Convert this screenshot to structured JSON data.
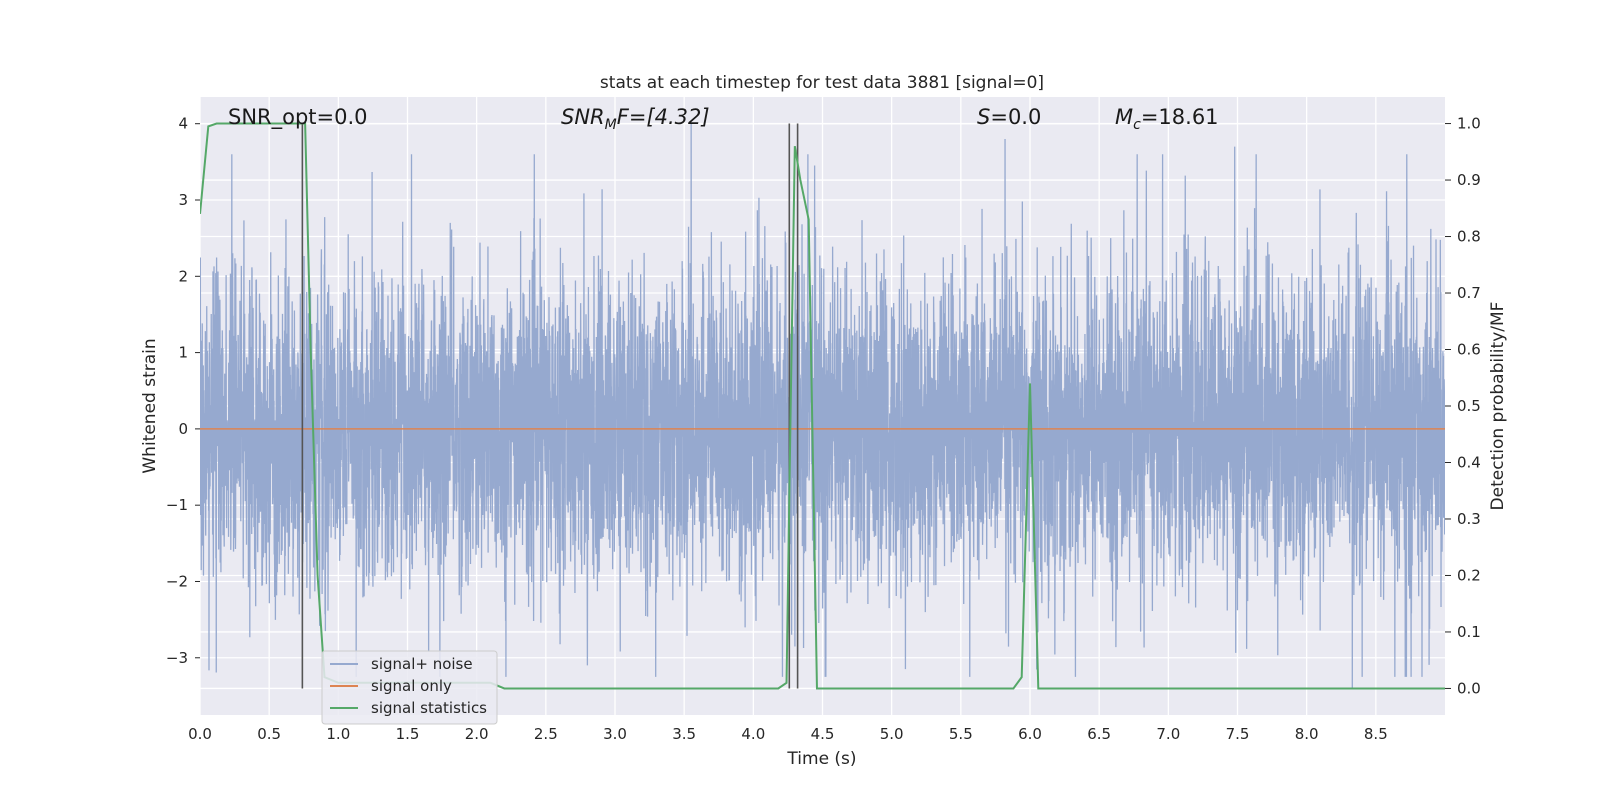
{
  "chart_data": {
    "type": "line",
    "title": "stats at each timestep for test data 3881 [signal=0]",
    "xlabel": "Time (s)",
    "ylabel_left": "Whitened strain",
    "ylabel_right": "Detection probability/MF",
    "xlim": [
      0.0,
      9.0
    ],
    "ylim_left": [
      -3.75,
      4.35
    ],
    "ylim_right": [
      -0.047,
      1.047
    ],
    "x_ticks": [
      "0.0",
      "0.5",
      "1.0",
      "1.5",
      "2.0",
      "2.5",
      "3.0",
      "3.5",
      "4.0",
      "4.5",
      "5.0",
      "5.5",
      "6.0",
      "6.5",
      "7.0",
      "7.5",
      "8.0",
      "8.5"
    ],
    "y_left_ticks": [
      "4",
      "3",
      "2",
      "1",
      "0",
      "−1",
      "−2",
      "−3"
    ],
    "y_right_ticks": [
      "1.0",
      "0.9",
      "0.8",
      "0.7",
      "0.6",
      "0.5",
      "0.4",
      "0.3",
      "0.2",
      "0.1",
      "0.0"
    ],
    "grid": true,
    "legend_position": "lower-left",
    "annotations": {
      "snr_opt": "SNR_opt=0.0",
      "snr_mf_main": "SNR",
      "snr_mf_sub": "M",
      "snr_mf_rest": "F=[4.32]",
      "s_main": "S",
      "s_rest": "=0.0",
      "mc_main": "M",
      "mc_sub": "c",
      "mc_rest": "=18.61"
    },
    "vertical_markers_s": [
      0.74,
      4.26,
      4.32
    ],
    "series": [
      {
        "name": "signal+ noise",
        "color": "#96a9cf",
        "description_axis": "left",
        "noise_envelope": {
          "typical_amplitude": 1.3,
          "max_peak": 4.0,
          "min_peak": -3.45,
          "sample_rate_hz": 800
        },
        "notable_peaks": [
          {
            "x": 3.55,
            "y": 4.0
          },
          {
            "x": 5.82,
            "y": 3.8
          },
          {
            "x": 7.48,
            "y": 3.7
          },
          {
            "x": 8.33,
            "y": -3.4
          },
          {
            "x": 4.52,
            "y": -3.25
          },
          {
            "x": 2.8,
            "y": -3.1
          }
        ]
      },
      {
        "name": "signal only",
        "color": "#dd8452",
        "axis": "left",
        "x": [
          0.0,
          9.0
        ],
        "y": [
          0.0,
          0.0
        ]
      },
      {
        "name": "signal statistics",
        "color": "#55a868",
        "axis": "right",
        "x": [
          0.0,
          0.06,
          0.12,
          0.2,
          0.4,
          0.6,
          0.7,
          0.74,
          0.76,
          0.8,
          0.85,
          0.9,
          1.0,
          1.2,
          1.5,
          1.8,
          2.0,
          2.1,
          2.2,
          2.4,
          2.8,
          3.2,
          3.6,
          4.0,
          4.18,
          4.24,
          4.27,
          4.3,
          4.34,
          4.4,
          4.46,
          4.5,
          5.0,
          5.5,
          5.88,
          5.94,
          6.0,
          6.06,
          6.1,
          6.5,
          7.0,
          7.5,
          8.0,
          8.5,
          9.0
        ],
        "y": [
          0.84,
          0.995,
          1.0,
          1.0,
          1.0,
          1.0,
          1.0,
          1.0,
          1.0,
          0.6,
          0.2,
          0.02,
          0.01,
          0.01,
          0.01,
          0.01,
          0.01,
          0.01,
          0.0,
          0.0,
          0.0,
          0.0,
          0.0,
          0.0,
          0.0,
          0.01,
          0.5,
          0.96,
          0.9,
          0.83,
          0.0,
          0.0,
          0.0,
          0.0,
          0.0,
          0.02,
          0.54,
          0.0,
          0.0,
          0.0,
          0.0,
          0.0,
          0.0,
          0.0,
          0.0
        ]
      }
    ]
  }
}
